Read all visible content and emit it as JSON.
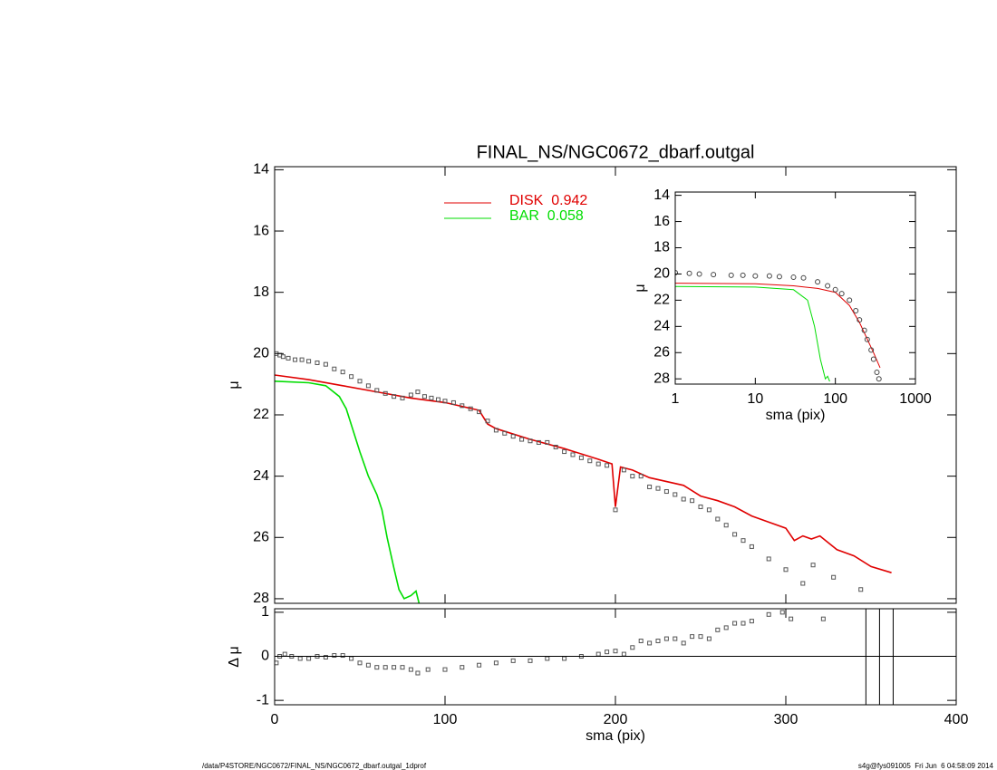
{
  "chart_data": [
    {
      "type": "line",
      "title": "FINAL_NS/NGC0672_dbarf.outgal",
      "ylabel": "μ",
      "ylim": [
        13.9,
        28.15
      ],
      "y_inverted": true,
      "yticks": [
        14,
        16,
        18,
        20,
        22,
        24,
        26,
        28
      ],
      "xlim": [
        0,
        400
      ],
      "points": {
        "color": "#555555",
        "marker": "square",
        "x": [
          1,
          3,
          5,
          8,
          12,
          16,
          20,
          25,
          30,
          35,
          40,
          45,
          50,
          55,
          60,
          65,
          70,
          75,
          80,
          84,
          88,
          92,
          96,
          100,
          105,
          110,
          115,
          120,
          125,
          130,
          135,
          140,
          145,
          150,
          155,
          160,
          165,
          170,
          175,
          180,
          185,
          190,
          195,
          200,
          205,
          210,
          215,
          220,
          225,
          230,
          235,
          240,
          245,
          250,
          255,
          260,
          265,
          270,
          275,
          280,
          290,
          300,
          310,
          316,
          328,
          344
        ],
        "y": [
          20.0,
          20.05,
          20.1,
          20.15,
          20.2,
          20.2,
          20.25,
          20.3,
          20.35,
          20.5,
          20.6,
          20.75,
          20.9,
          21.05,
          21.2,
          21.3,
          21.4,
          21.45,
          21.35,
          21.25,
          21.4,
          21.45,
          21.5,
          21.55,
          21.6,
          21.7,
          21.8,
          21.9,
          22.2,
          22.5,
          22.6,
          22.7,
          22.8,
          22.85,
          22.9,
          22.9,
          23.05,
          23.2,
          23.3,
          23.4,
          23.5,
          23.6,
          23.65,
          25.1,
          23.8,
          24.0,
          24.0,
          24.35,
          24.4,
          24.5,
          24.6,
          24.75,
          24.8,
          25.0,
          25.1,
          25.4,
          25.6,
          25.9,
          26.1,
          26.3,
          26.7,
          27.05,
          27.5,
          26.9,
          27.3,
          27.7
        ]
      },
      "series": [
        {
          "name": "DISK  0.942",
          "color": "#e00000",
          "x": [
            0,
            20,
            40,
            60,
            80,
            100,
            120,
            125,
            130,
            150,
            170,
            190,
            198,
            200,
            203,
            210,
            220,
            240,
            250,
            260,
            270,
            280,
            290,
            300,
            305,
            310,
            315,
            320,
            330,
            340,
            350,
            362
          ],
          "y": [
            20.7,
            20.85,
            21.05,
            21.25,
            21.45,
            21.6,
            21.85,
            22.3,
            22.45,
            22.8,
            23.1,
            23.45,
            23.6,
            25.0,
            23.7,
            23.8,
            24.05,
            24.3,
            24.65,
            24.8,
            25.0,
            25.3,
            25.5,
            25.7,
            26.1,
            25.95,
            26.05,
            25.95,
            26.4,
            26.6,
            26.95,
            27.15
          ]
        },
        {
          "name": "BAR  0.058",
          "color": "#00dd00",
          "x": [
            0,
            20,
            30,
            38,
            42,
            46,
            50,
            55,
            60,
            63,
            66,
            70,
            73,
            76,
            80,
            83,
            85
          ],
          "y": [
            20.9,
            20.95,
            21.05,
            21.4,
            21.8,
            22.5,
            23.2,
            24.0,
            24.6,
            25.1,
            26.0,
            27.0,
            27.7,
            28.0,
            27.9,
            27.75,
            28.2
          ]
        }
      ]
    },
    {
      "type": "scatter",
      "xlabel": "sma (pix)",
      "ylabel": "Δ μ",
      "xlim": [
        0,
        400
      ],
      "xticks": [
        0,
        100,
        200,
        300,
        400
      ],
      "ylim": [
        -1.1,
        1.08
      ],
      "yticks": [
        -1,
        0,
        1
      ],
      "vlines": [
        347,
        355,
        363
      ],
      "points": {
        "color": "#555555",
        "marker": "square",
        "x": [
          1,
          3,
          6,
          10,
          15,
          20,
          25,
          30,
          35,
          40,
          45,
          50,
          55,
          60,
          65,
          70,
          75,
          80,
          84,
          90,
          100,
          110,
          120,
          130,
          140,
          150,
          160,
          170,
          180,
          190,
          195,
          200,
          205,
          210,
          215,
          220,
          225,
          230,
          235,
          240,
          245,
          250,
          255,
          260,
          265,
          270,
          275,
          280,
          290,
          298,
          303,
          322
        ],
        "y": [
          -0.15,
          0.0,
          0.05,
          0.0,
          -0.05,
          -0.05,
          0.0,
          -0.02,
          0.02,
          0.02,
          -0.05,
          -0.15,
          -0.2,
          -0.25,
          -0.25,
          -0.25,
          -0.25,
          -0.3,
          -0.38,
          -0.3,
          -0.3,
          -0.25,
          -0.2,
          -0.15,
          -0.1,
          -0.1,
          -0.05,
          -0.05,
          0.0,
          0.05,
          0.1,
          0.12,
          0.05,
          0.2,
          0.35,
          0.3,
          0.35,
          0.4,
          0.4,
          0.3,
          0.45,
          0.45,
          0.4,
          0.6,
          0.65,
          0.75,
          0.75,
          0.8,
          0.95,
          1.0,
          0.85,
          0.85
        ]
      }
    },
    {
      "type": "line",
      "xlabel": "sma (pix)",
      "ylabel": "μ",
      "xlog": true,
      "xlim": [
        1,
        1000
      ],
      "xticks": [
        1,
        10,
        100,
        1000
      ],
      "ylim": [
        13.75,
        28.4
      ],
      "y_inverted": true,
      "yticks": [
        14,
        16,
        18,
        20,
        22,
        24,
        26,
        28
      ],
      "points": {
        "color": "#444444",
        "marker": "circle",
        "x": [
          1,
          1.5,
          2,
          3,
          5,
          7,
          10,
          15,
          20,
          30,
          40,
          60,
          80,
          100,
          120,
          150,
          180,
          200,
          230,
          250,
          280,
          300,
          330,
          350
        ],
        "y": [
          19.9,
          19.95,
          20.0,
          20.05,
          20.1,
          20.1,
          20.15,
          20.15,
          20.2,
          20.25,
          20.3,
          20.6,
          20.9,
          21.2,
          21.5,
          22.0,
          22.8,
          23.5,
          24.3,
          25.0,
          25.8,
          26.5,
          27.5,
          28.0
        ]
      },
      "series": [
        {
          "color": "#e00000",
          "x": [
            1,
            10,
            30,
            60,
            100,
            150,
            200,
            300,
            362
          ],
          "y": [
            20.7,
            20.75,
            20.9,
            21.1,
            21.4,
            22.4,
            23.7,
            26.0,
            27.15
          ]
        },
        {
          "color": "#00dd00",
          "x": [
            1,
            10,
            30,
            45,
            55,
            65,
            75,
            80,
            85
          ],
          "y": [
            20.95,
            21.0,
            21.2,
            22.0,
            24.0,
            26.5,
            28.0,
            27.8,
            28.2
          ]
        }
      ]
    }
  ],
  "footer": {
    "left": "/data/P4STORE/NGC0672/FINAL_NS/NGC0672_dbarf.outgal_1dprof",
    "right": "s4g@fys091005  Fri Jun  6 04:58:09 2014"
  }
}
